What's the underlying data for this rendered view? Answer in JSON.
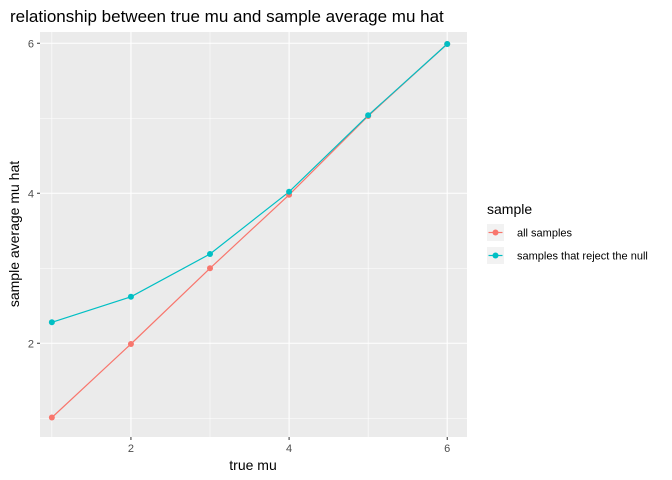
{
  "chart_data": {
    "type": "line",
    "title": "relationship between true mu and sample average mu hat",
    "xlabel": "true mu",
    "ylabel": "sample average mu hat",
    "x": [
      1,
      2,
      3,
      4,
      5,
      6
    ],
    "xlim": [
      0.85,
      6.25
    ],
    "ylim": [
      0.75,
      6.15
    ],
    "xticks": [
      2,
      4,
      6
    ],
    "yticks": [
      2,
      4,
      6
    ],
    "grid": true,
    "legend_position": "right",
    "legend_title": "sample",
    "series": [
      {
        "name": "all samples",
        "color": "#F8766D",
        "values": [
          1.01,
          1.99,
          3.0,
          3.98,
          5.03,
          5.99
        ]
      },
      {
        "name": "samples that reject the null",
        "color": "#00BFC4",
        "values": [
          2.28,
          2.62,
          3.19,
          4.02,
          5.04,
          5.99
        ]
      }
    ]
  }
}
